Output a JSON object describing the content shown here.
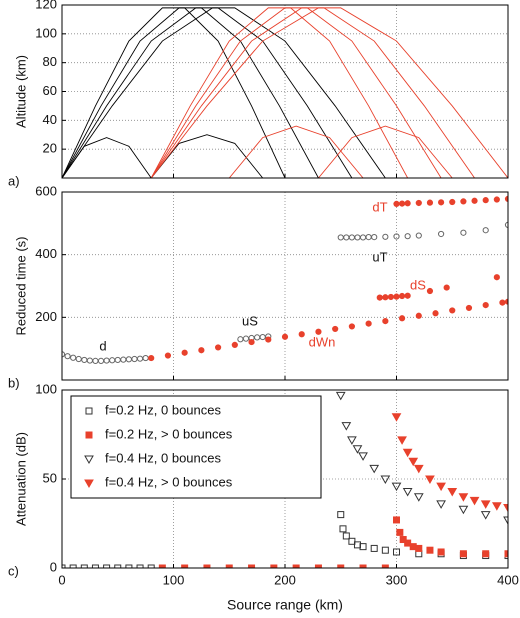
{
  "chart_data": [
    {
      "type": "line",
      "label": "a)",
      "ylabel": "Altitude (km)",
      "xlim": [
        0,
        400
      ],
      "xticks": [
        0,
        100,
        200,
        300,
        400
      ],
      "ylim": [
        0,
        120
      ],
      "yticks": [
        20,
        40,
        60,
        80,
        100,
        120
      ],
      "grid": true,
      "series": [
        {
          "color": "#000000",
          "x": [
            0,
            30,
            60,
            90,
            110,
            140,
            170,
            200
          ],
          "values": [
            0,
            50,
            95,
            118,
            118,
            95,
            50,
            0
          ]
        },
        {
          "color": "#000000",
          "x": [
            0,
            35,
            70,
            105,
            125,
            160,
            195,
            230
          ],
          "values": [
            0,
            50,
            95,
            118,
            118,
            95,
            50,
            0
          ]
        },
        {
          "color": "#000000",
          "x": [
            0,
            40,
            80,
            120,
            140,
            180,
            220,
            260
          ],
          "values": [
            0,
            50,
            95,
            118,
            118,
            95,
            50,
            0
          ]
        },
        {
          "color": "#000000",
          "x": [
            0,
            45,
            90,
            135,
            155,
            200,
            245,
            290
          ],
          "values": [
            0,
            50,
            95,
            118,
            118,
            95,
            50,
            0
          ]
        },
        {
          "color": "#000000",
          "x": [
            0,
            20,
            40,
            60,
            80
          ],
          "values": [
            0,
            22,
            28,
            22,
            0
          ]
        },
        {
          "color": "#000000",
          "x": [
            80,
            105,
            130,
            155,
            180
          ],
          "values": [
            0,
            24,
            30,
            24,
            0
          ]
        },
        {
          "color": "#e8412c",
          "x": [
            80,
            115,
            150,
            185,
            205,
            240,
            275,
            310
          ],
          "values": [
            0,
            50,
            95,
            118,
            118,
            95,
            50,
            0
          ]
        },
        {
          "color": "#e8412c",
          "x": [
            80,
            120,
            160,
            200,
            220,
            260,
            300,
            340
          ],
          "values": [
            0,
            50,
            95,
            118,
            118,
            95,
            50,
            0
          ]
        },
        {
          "color": "#e8412c",
          "x": [
            80,
            125,
            170,
            215,
            235,
            280,
            325,
            370
          ],
          "values": [
            0,
            50,
            95,
            118,
            118,
            95,
            50,
            0
          ]
        },
        {
          "color": "#e8412c",
          "x": [
            80,
            130,
            180,
            230,
            250,
            300,
            350,
            400
          ],
          "values": [
            0,
            50,
            95,
            118,
            118,
            95,
            50,
            0
          ]
        },
        {
          "color": "#e8412c",
          "x": [
            150,
            180,
            210,
            240,
            270
          ],
          "values": [
            0,
            28,
            36,
            28,
            0
          ]
        },
        {
          "color": "#e8412c",
          "x": [
            230,
            260,
            290,
            320,
            350
          ],
          "values": [
            0,
            28,
            36,
            28,
            0
          ]
        }
      ]
    },
    {
      "type": "scatter",
      "label": "b)",
      "ylabel": "Reduced time (s)",
      "xlim": [
        0,
        400
      ],
      "xticks": [
        0,
        100,
        200,
        300,
        400
      ],
      "ylim": [
        0,
        600
      ],
      "yticks": [
        200,
        400,
        600
      ],
      "grid": true,
      "series": [
        {
          "name": "d",
          "color": "#666666",
          "marker": "circle",
          "filled": false,
          "x": [
            0,
            5,
            10,
            15,
            20,
            25,
            30,
            35,
            40,
            45,
            50,
            55,
            60,
            65,
            70,
            75
          ],
          "values": [
            82,
            76,
            71,
            67,
            64,
            62,
            61,
            61,
            62,
            63,
            64,
            65,
            66,
            67,
            68,
            70
          ]
        },
        {
          "name": "uS",
          "color": "#666666",
          "marker": "circle",
          "filled": false,
          "x": [
            160,
            165,
            170,
            175,
            180,
            185
          ],
          "values": [
            130,
            132,
            134,
            136,
            137,
            139
          ]
        },
        {
          "name": "uT",
          "color": "#666666",
          "marker": "circle",
          "filled": false,
          "x": [
            250,
            255,
            260,
            265,
            270,
            275,
            280,
            290,
            300,
            310,
            320,
            340,
            360,
            380,
            400
          ],
          "values": [
            455,
            455,
            455,
            455,
            455,
            456,
            456,
            457,
            458,
            459,
            461,
            466,
            470,
            478,
            495
          ]
        },
        {
          "name": "dWn",
          "color": "#e8412c",
          "marker": "circle",
          "filled": true,
          "x": [
            80,
            95,
            110,
            125,
            140,
            155,
            170,
            185,
            200,
            215,
            230,
            245,
            260,
            275,
            290,
            305,
            320,
            335,
            350,
            365,
            380,
            395,
            400
          ],
          "values": [
            70,
            78,
            87,
            95,
            104,
            112,
            121,
            129,
            138,
            146,
            154,
            163,
            171,
            180,
            188,
            197,
            205,
            213,
            222,
            230,
            239,
            247,
            250
          ]
        },
        {
          "name": "dS",
          "color": "#e8412c",
          "marker": "circle",
          "filled": true,
          "x": [
            285,
            290,
            295,
            300,
            305,
            310,
            330,
            345,
            390
          ],
          "values": [
            263,
            264,
            265,
            266,
            268,
            269,
            284,
            295,
            328
          ]
        },
        {
          "name": "dT",
          "color": "#e8412c",
          "marker": "circle",
          "filled": true,
          "x": [
            300,
            305,
            310,
            320,
            330,
            340,
            350,
            360,
            370,
            380,
            390,
            400
          ],
          "values": [
            562,
            563,
            564,
            565,
            566,
            567,
            568,
            570,
            572,
            574,
            576,
            578
          ]
        }
      ]
    },
    {
      "type": "scatter",
      "label": "c)",
      "ylabel": "Attenuation (dB)",
      "xlabel": "Source range (km)",
      "legend": "top-left",
      "xlim": [
        0,
        400
      ],
      "xticks": [
        0,
        100,
        200,
        300,
        400
      ],
      "ylim": [
        0,
        100
      ],
      "yticks": [
        0,
        50,
        100
      ],
      "grid": true,
      "series": [
        {
          "name": "f=0.2 Hz, 0 bounces",
          "color": "#333333",
          "marker": "square",
          "filled": false,
          "x": [
            0,
            10,
            20,
            30,
            40,
            50,
            60,
            70,
            80,
            250,
            252,
            255,
            260,
            265,
            270,
            280,
            290,
            300,
            320,
            340,
            360,
            380,
            400
          ],
          "values": [
            0,
            0,
            0,
            0,
            0,
            0,
            0,
            0,
            0,
            30,
            22,
            18,
            15,
            13,
            12,
            11,
            10,
            9,
            8,
            8,
            7,
            7,
            7
          ]
        },
        {
          "name": "f=0.2 Hz, > 0 bounces",
          "color": "#e8412c",
          "marker": "square",
          "filled": true,
          "x": [
            90,
            110,
            130,
            150,
            170,
            190,
            210,
            230,
            250,
            270,
            290,
            300,
            303,
            306,
            310,
            315,
            320,
            330,
            340,
            360,
            380,
            400
          ],
          "values": [
            0,
            0,
            0,
            0,
            0,
            0,
            0,
            0,
            0,
            0,
            0,
            27,
            20,
            16,
            14,
            12,
            11,
            10,
            9,
            8,
            8,
            8
          ]
        },
        {
          "name": "f=0.4 Hz, 0 bounces",
          "color": "#333333",
          "marker": "triangle",
          "filled": false,
          "x": [
            250,
            255,
            260,
            265,
            270,
            280,
            290,
            300,
            310,
            320,
            340,
            360,
            380,
            400
          ],
          "values": [
            97,
            80,
            72,
            67,
            63,
            56,
            50,
            46,
            43,
            40,
            36,
            33,
            30,
            27
          ]
        },
        {
          "name": "f=0.4 Hz, > 0 bounces",
          "color": "#e8412c",
          "marker": "triangle",
          "filled": true,
          "x": [
            300,
            305,
            310,
            315,
            320,
            330,
            340,
            350,
            360,
            370,
            380,
            390,
            400
          ],
          "values": [
            85,
            72,
            65,
            60,
            56,
            50,
            46,
            43,
            40,
            38,
            36,
            35,
            34
          ]
        }
      ]
    }
  ]
}
